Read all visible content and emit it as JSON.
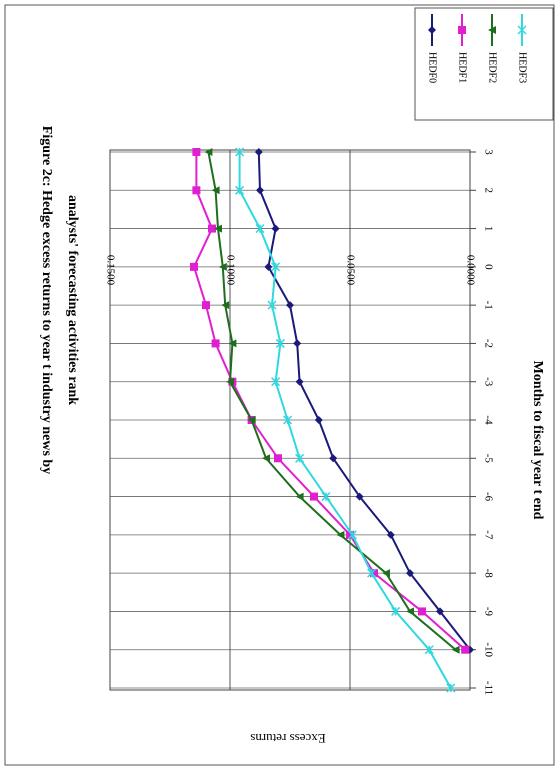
{
  "chart_data": {
    "type": "line",
    "title": [
      "Figure 2c: Hedge excess returns to year t industry  news by",
      "analysts' forecasting activities rank"
    ],
    "x_label": "Months to fiscal year t end",
    "y_label": "Excess returns",
    "categories": [
      "-11",
      "-10",
      "-9",
      "-8",
      "-7",
      "-6",
      "-5",
      "-4",
      "-3",
      "-2",
      "-1",
      "0",
      "1",
      "2",
      "3"
    ],
    "ylim": [
      0,
      0.15
    ],
    "yticks": [
      {
        "value": 0,
        "label": "0.0000"
      },
      {
        "value": 0.05,
        "label": "0.0500"
      },
      {
        "value": 0.1,
        "label": "0.1000"
      },
      {
        "value": 0.15,
        "label": "0.1500"
      }
    ],
    "grid": true,
    "legend": "right",
    "series": [
      {
        "name": "HEDF0",
        "color": "#1a1a7a",
        "marker": "diamond",
        "values": [
          null,
          0.0,
          0.0125,
          0.025,
          0.033,
          0.046,
          0.057,
          0.063,
          0.071,
          0.072,
          0.075,
          0.084,
          0.081,
          0.0875,
          0.088
        ]
      },
      {
        "name": "HEDF1",
        "color": "#e020d0",
        "marker": "square",
        "values": [
          null,
          0.002,
          0.02,
          0.04,
          0.05,
          0.065,
          0.08,
          0.091,
          0.099,
          0.106,
          0.11,
          0.115,
          0.1075,
          0.114,
          0.114
        ]
      },
      {
        "name": "HEDF2",
        "color": "#1e6e1e",
        "marker": "triangle",
        "values": [
          null,
          0.006,
          0.025,
          0.035,
          0.054,
          0.071,
          0.085,
          0.091,
          0.1,
          0.099,
          0.102,
          0.103,
          0.105,
          0.106,
          0.109
        ]
      },
      {
        "name": "HEDF3",
        "color": "#30d8e0",
        "marker": "cross",
        "values": [
          0.008,
          0.017,
          0.031,
          0.041,
          0.049,
          0.06,
          0.071,
          0.076,
          0.081,
          0.079,
          0.0825,
          0.081,
          0.0875,
          0.096,
          0.096
        ]
      }
    ]
  }
}
